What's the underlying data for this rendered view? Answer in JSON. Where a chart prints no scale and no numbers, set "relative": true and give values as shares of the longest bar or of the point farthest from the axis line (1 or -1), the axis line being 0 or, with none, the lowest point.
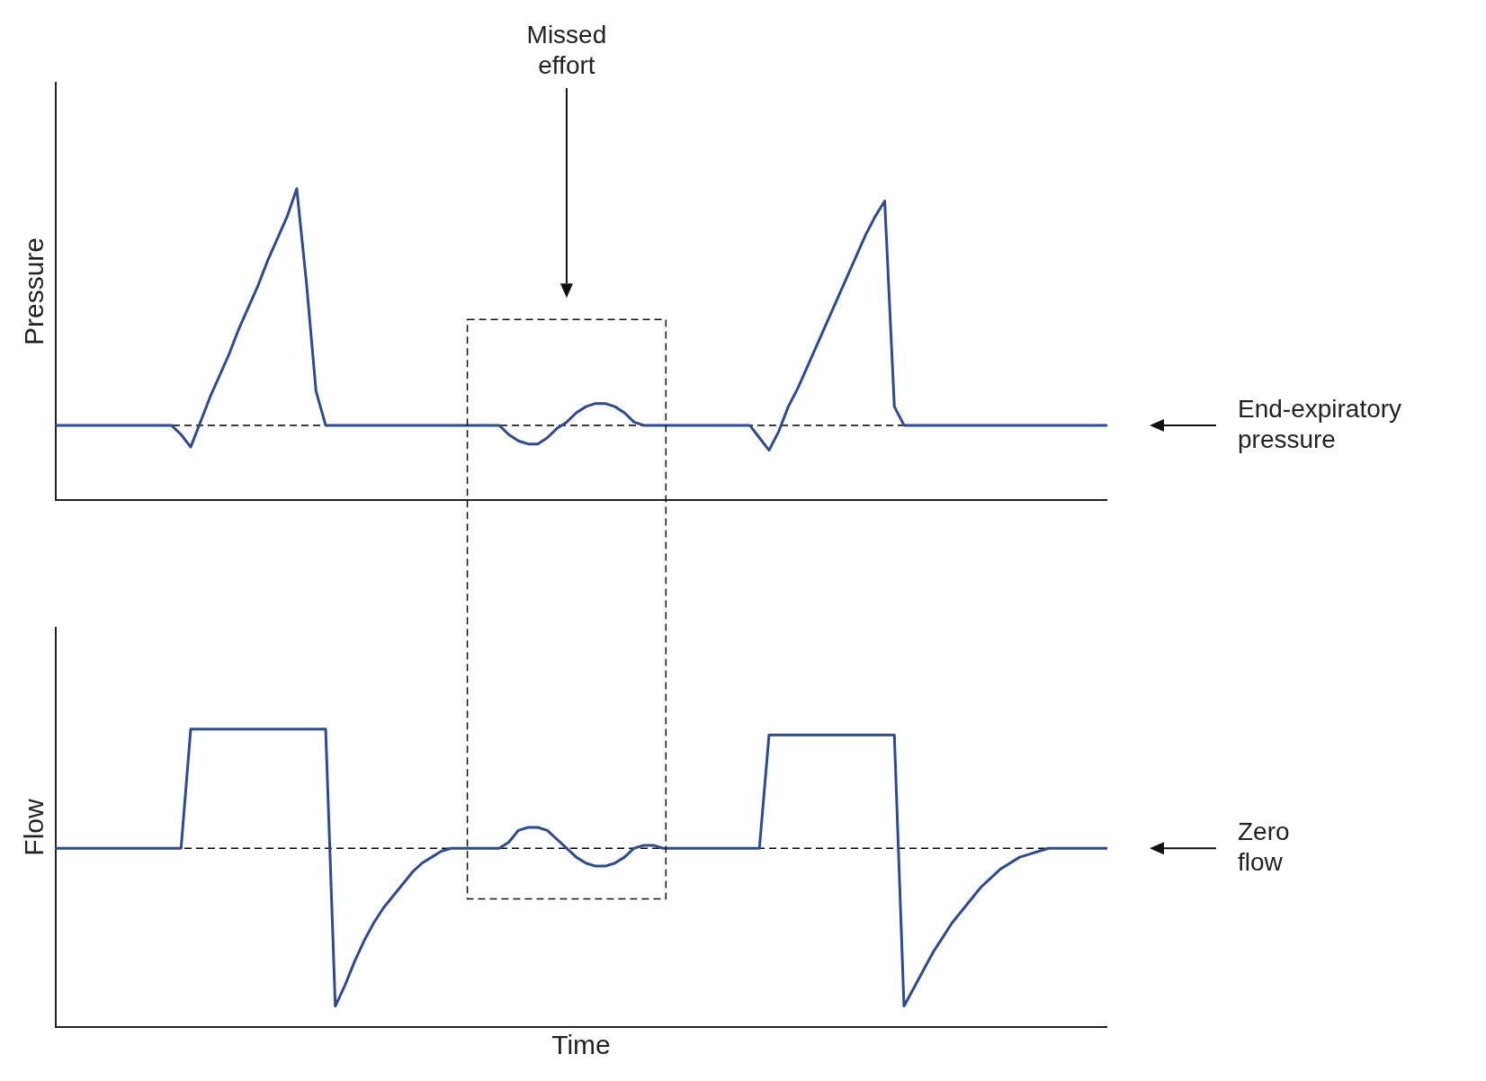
{
  "chart_data": [
    {
      "type": "line",
      "ylabel": "Pressure",
      "relative": true,
      "tick_labels": false,
      "marker": "none",
      "categories": [
        null,
        null,
        null,
        null,
        null,
        null,
        null,
        null,
        null,
        null,
        null,
        null,
        null,
        null,
        null,
        null,
        null,
        null,
        null,
        null,
        null,
        null,
        null,
        null,
        null,
        null,
        null,
        null,
        null,
        null,
        null,
        null,
        null,
        null,
        null,
        null,
        null,
        null,
        null,
        null,
        null,
        null,
        null,
        null,
        null,
        null,
        null,
        null,
        null,
        null,
        null,
        null,
        null,
        null,
        null,
        null,
        null,
        null,
        null,
        null,
        null,
        null,
        null,
        null,
        null,
        null,
        null,
        null,
        null,
        null,
        null,
        null,
        null,
        null,
        null,
        null,
        null,
        null,
        null,
        null,
        null,
        null,
        null,
        null,
        null,
        null,
        null,
        null,
        null,
        null,
        null,
        null,
        null,
        null,
        null,
        null,
        null,
        null,
        null,
        null,
        null,
        null,
        null,
        null,
        null,
        null,
        null,
        null,
        null,
        null
      ],
      "series": [
        {
          "color": "#2f4b8c",
          "values": [
            0.24,
            0.24,
            0.24,
            0.24,
            0.24,
            0.24,
            0.24,
            0.24,
            0.24,
            0.24,
            0.24,
            0.24,
            0.24,
            0.21,
            0.17,
            0.25,
            0.33,
            0.4,
            0.47,
            0.55,
            0.62,
            0.69,
            0.77,
            0.84,
            0.91,
            1.0,
            0.7,
            0.35,
            0.24,
            0.24,
            0.24,
            0.24,
            0.24,
            0.24,
            0.24,
            0.24,
            0.24,
            0.24,
            0.24,
            0.24,
            0.24,
            0.24,
            0.24,
            0.24,
            0.24,
            0.24,
            0.24,
            0.21,
            0.19,
            0.18,
            0.18,
            0.2,
            0.23,
            0.25,
            0.28,
            0.3,
            0.31,
            0.31,
            0.3,
            0.28,
            0.25,
            0.24,
            0.24,
            0.24,
            0.24,
            0.24,
            0.24,
            0.24,
            0.24,
            0.24,
            0.24,
            0.24,
            0.24,
            0.2,
            0.16,
            0.22,
            0.3,
            0.36,
            0.43,
            0.5,
            0.57,
            0.64,
            0.71,
            0.78,
            0.85,
            0.91,
            0.96,
            0.3,
            0.24,
            0.24,
            0.24,
            0.24,
            0.24,
            0.24,
            0.24,
            0.24,
            0.24,
            0.24,
            0.24,
            0.24,
            0.24,
            0.24,
            0.24,
            0.24,
            0.24,
            0.24,
            0.24,
            0.24,
            0.24,
            0.24
          ]
        }
      ],
      "ref_lines": [
        {
          "axis": "y",
          "value": 0.24,
          "label": "End-expiratory pressure",
          "line_style": "dashed",
          "color": "#000000"
        }
      ],
      "annotations": [
        "Missed effort"
      ]
    },
    {
      "type": "line",
      "ylabel": "Flow",
      "xlabel": "Time",
      "relative": true,
      "tick_labels": false,
      "marker": "none",
      "categories": [
        null,
        null,
        null,
        null,
        null,
        null,
        null,
        null,
        null,
        null,
        null,
        null,
        null,
        null,
        null,
        null,
        null,
        null,
        null,
        null,
        null,
        null,
        null,
        null,
        null,
        null,
        null,
        null,
        null,
        null,
        null,
        null,
        null,
        null,
        null,
        null,
        null,
        null,
        null,
        null,
        null,
        null,
        null,
        null,
        null,
        null,
        null,
        null,
        null,
        null,
        null,
        null,
        null,
        null,
        null,
        null,
        null,
        null,
        null,
        null,
        null,
        null,
        null,
        null,
        null,
        null,
        null,
        null,
        null,
        null,
        null,
        null,
        null,
        null,
        null,
        null,
        null,
        null,
        null,
        null,
        null,
        null,
        null,
        null,
        null,
        null,
        null,
        null,
        null,
        null,
        null,
        null,
        null,
        null,
        null,
        null,
        null,
        null,
        null,
        null,
        null,
        null,
        null,
        null,
        null,
        null,
        null,
        null,
        null,
        null
      ],
      "series": [
        {
          "color": "#2f4b8c",
          "values": [
            0.6,
            0.6,
            0.6,
            0.6,
            0.6,
            0.6,
            0.6,
            0.6,
            0.6,
            0.6,
            0.6,
            0.6,
            0.6,
            0.6,
            1.0,
            1.0,
            1.0,
            1.0,
            1.0,
            1.0,
            1.0,
            1.0,
            1.0,
            1.0,
            1.0,
            1.0,
            1.0,
            1.0,
            1.0,
            0.07,
            0.14,
            0.22,
            0.29,
            0.35,
            0.4,
            0.44,
            0.48,
            0.52,
            0.55,
            0.57,
            0.59,
            0.6,
            0.6,
            0.6,
            0.6,
            0.6,
            0.6,
            0.62,
            0.66,
            0.67,
            0.67,
            0.66,
            0.63,
            0.6,
            0.57,
            0.55,
            0.54,
            0.54,
            0.55,
            0.57,
            0.6,
            0.61,
            0.61,
            0.6,
            0.6,
            0.6,
            0.6,
            0.6,
            0.6,
            0.6,
            0.6,
            0.6,
            0.6,
            0.6,
            0.98,
            0.98,
            0.98,
            0.98,
            0.98,
            0.98,
            0.98,
            0.98,
            0.98,
            0.98,
            0.98,
            0.98,
            0.98,
            0.98,
            0.07,
            0.13,
            0.19,
            0.25,
            0.3,
            0.35,
            0.39,
            0.43,
            0.47,
            0.5,
            0.53,
            0.55,
            0.57,
            0.58,
            0.59,
            0.6,
            0.6,
            0.6,
            0.6,
            0.6,
            0.6,
            0.6
          ]
        }
      ],
      "ref_lines": [
        {
          "axis": "y",
          "value": 0.6,
          "label": "Zero flow",
          "line_style": "dashed",
          "color": "#000000"
        }
      ]
    }
  ]
}
